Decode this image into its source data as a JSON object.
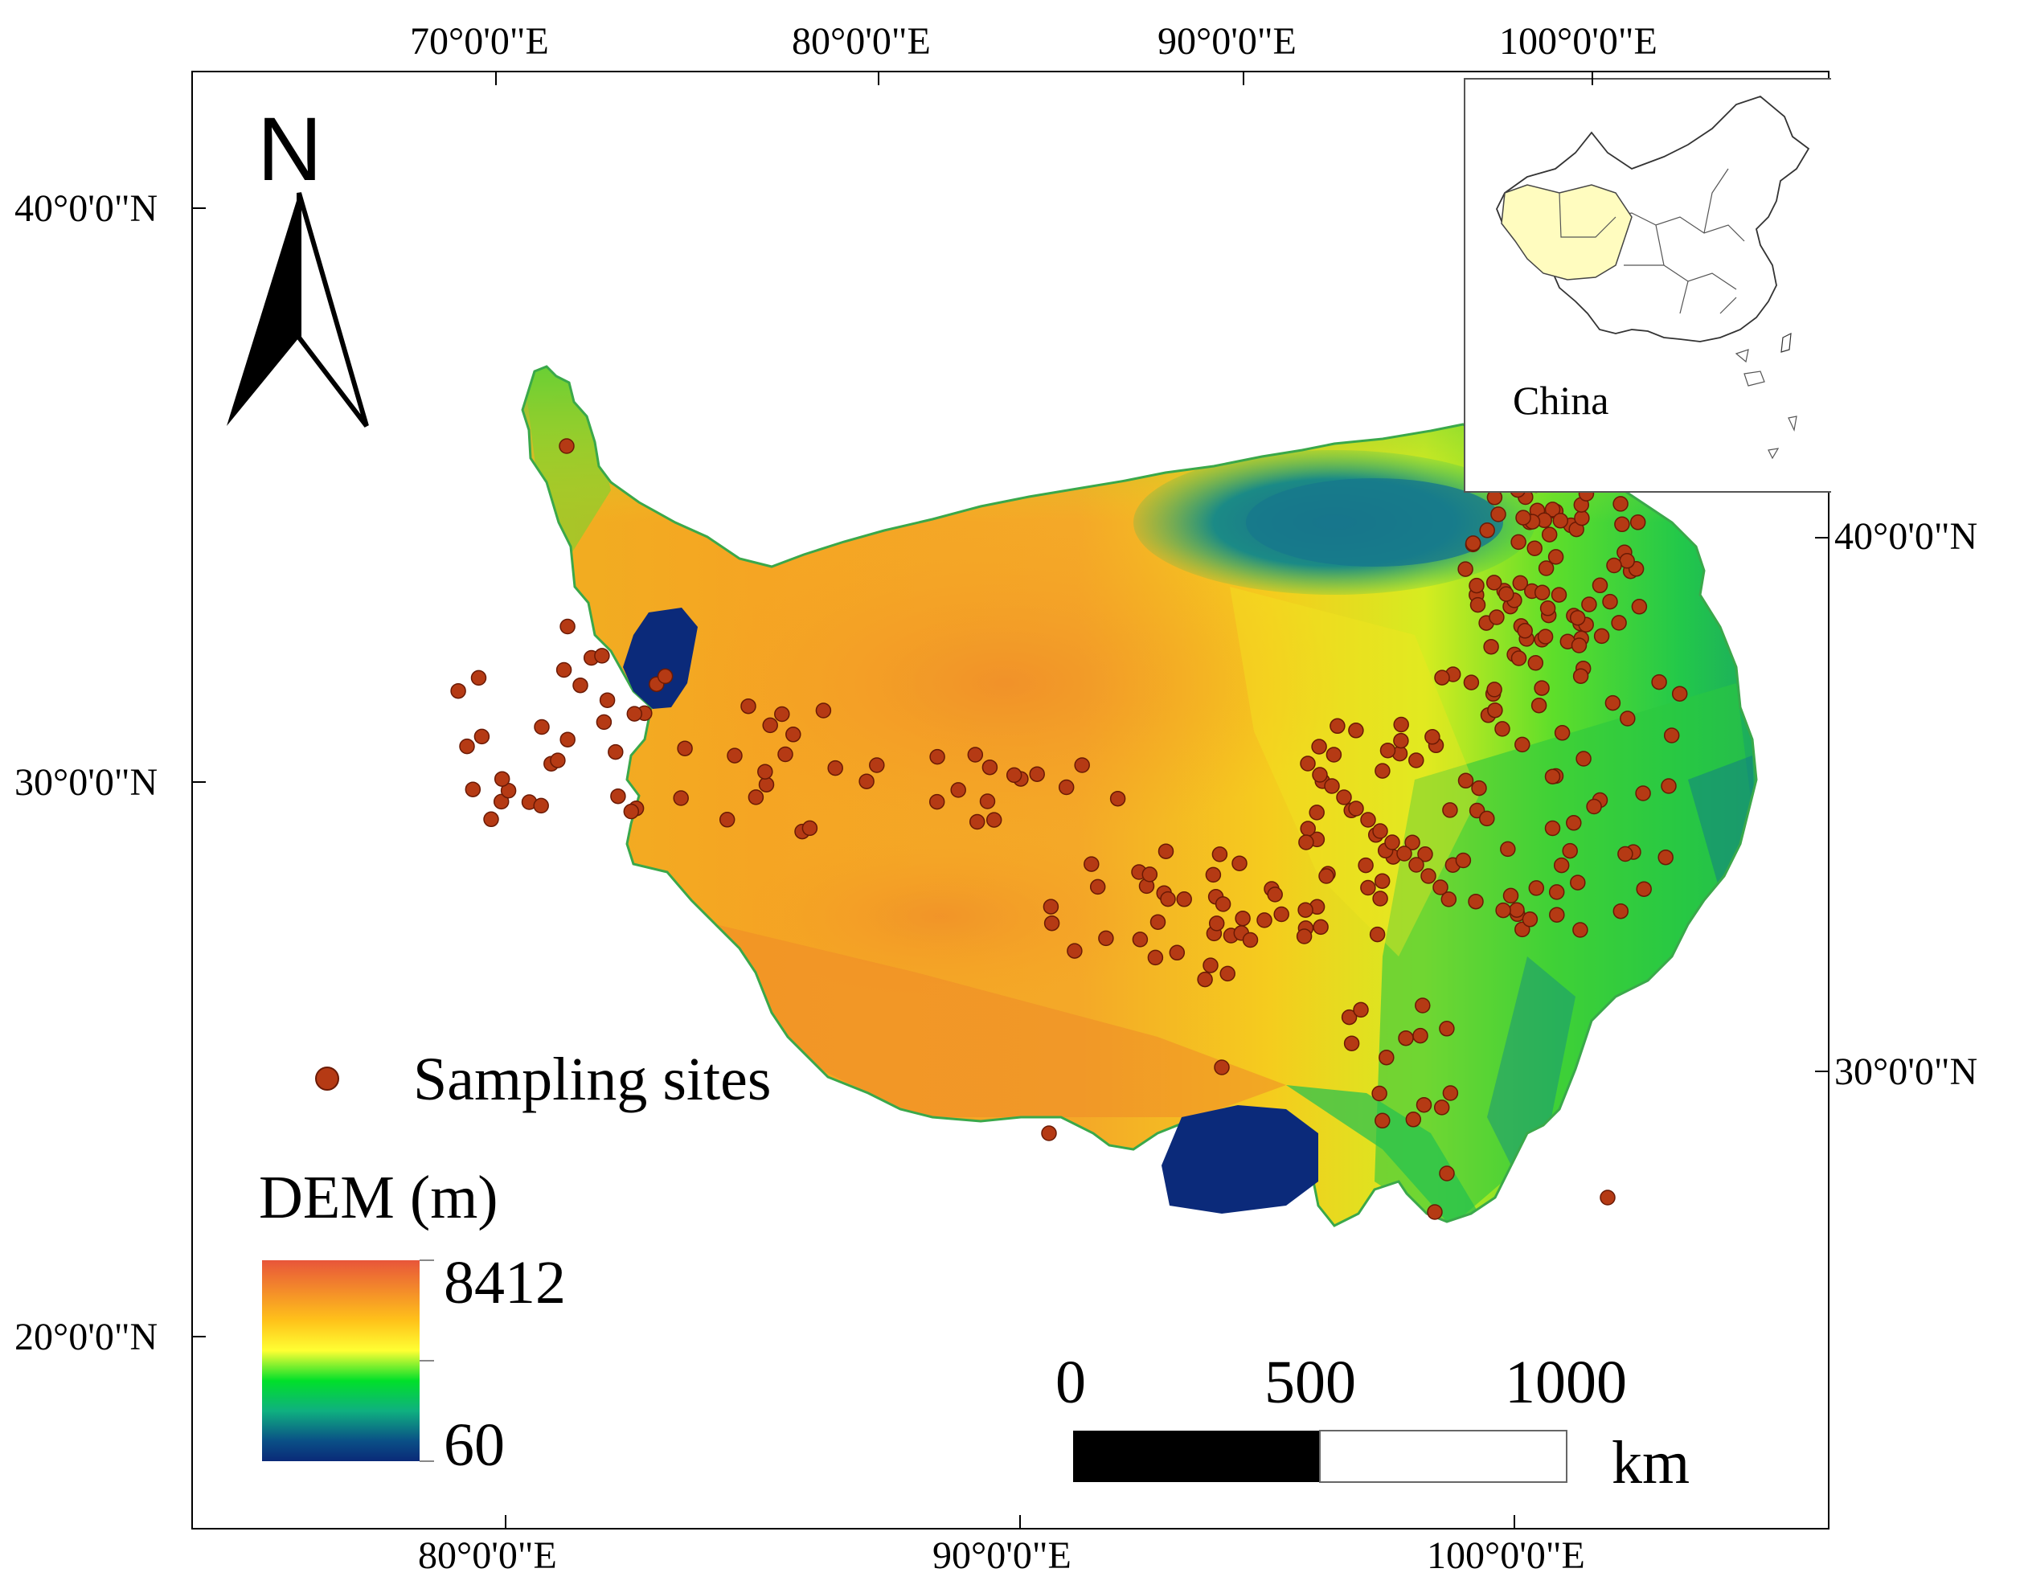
{
  "map": {
    "top_longitude_labels": [
      "70°0'0\"E",
      "80°0'0\"E",
      "90°0'0\"E",
      "100°0'0\"E"
    ],
    "bottom_longitude_labels": [
      "80°0'0\"E",
      "90°0'0\"E",
      "100°0'0\"E"
    ],
    "left_latitude_labels": [
      "40°0'0\"N",
      "30°0'0\"N",
      "20°0'0\"N"
    ],
    "right_latitude_labels": [
      "40°0'0\"N",
      "30°0'0\"N"
    ],
    "north_arrow_label": "N",
    "inset_label": "China",
    "legend": {
      "sites_label": "Sampling sites",
      "sites_color": "#b53a14",
      "dem_title": "DEM (m)",
      "dem_max": "8412",
      "dem_min": "60",
      "colors": [
        "#e8553a",
        "#ffc21a",
        "#ffff33",
        "#00e02a",
        "#0fb080",
        "#0a4f86",
        "#0a2a78"
      ]
    },
    "scale_bar": {
      "labels": [
        "0",
        "500",
        "1000"
      ],
      "unit": "km"
    }
  }
}
